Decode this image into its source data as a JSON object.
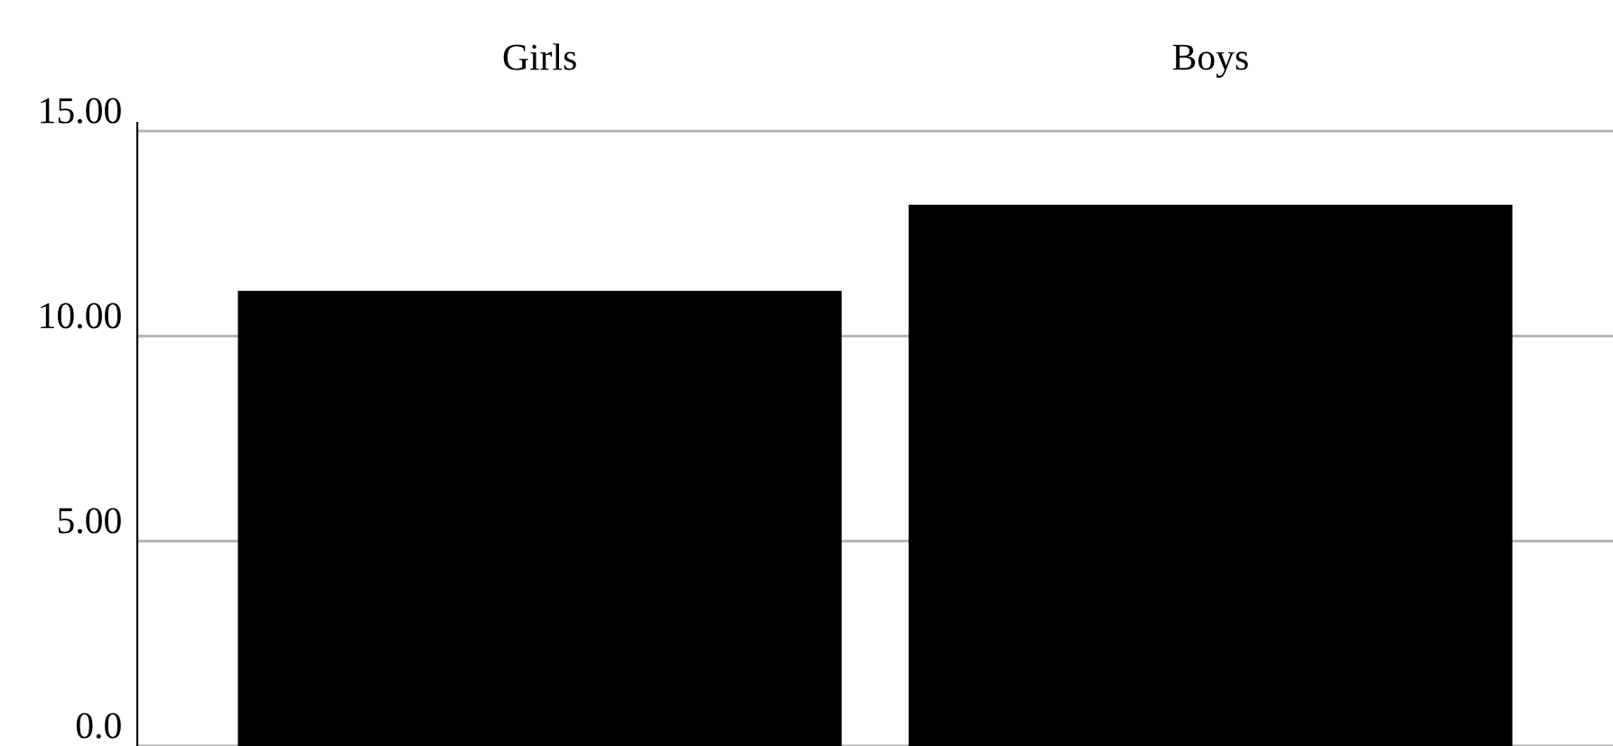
{
  "chart_data": {
    "type": "bar",
    "categories": [
      "Girls",
      "Boys"
    ],
    "values": [
      11.1,
      13.2
    ],
    "color": "#000000",
    "ylim": [
      0,
      15.2
    ],
    "yticks": [
      {
        "value": 0,
        "label": "0.0"
      },
      {
        "value": 5,
        "label": "5.00"
      },
      {
        "value": 10,
        "label": "10.00"
      },
      {
        "value": 15,
        "label": "15.00"
      }
    ],
    "grid": "y",
    "legend": false
  }
}
